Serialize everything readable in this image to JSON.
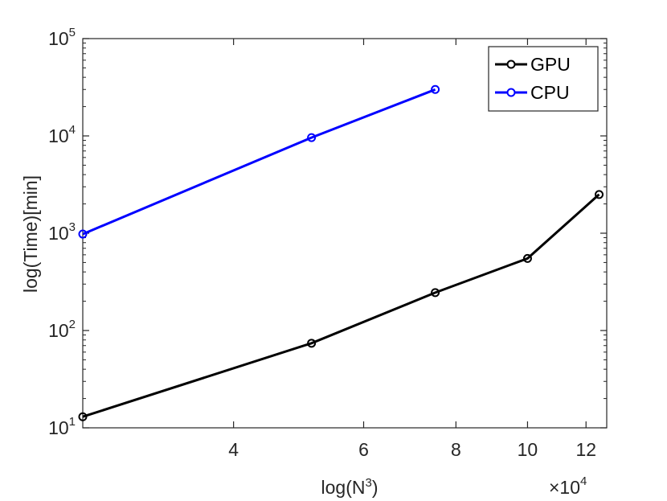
{
  "chart_data": {
    "type": "line",
    "xscale": "log",
    "yscale": "log",
    "xlim": [
      25000,
      128000
    ],
    "ylim": [
      10,
      100000
    ],
    "xlabel": {
      "base": "log(N",
      "sup": "3",
      "close": ")"
    },
    "ylabel": "log(Time)[min]",
    "x_multiplier": {
      "prefix": "×10",
      "exp": "4"
    },
    "xticks": [
      {
        "value": 40000,
        "label": "4"
      },
      {
        "value": 60000,
        "label": "6"
      },
      {
        "value": 80000,
        "label": "8"
      },
      {
        "value": 100000,
        "label": "10"
      },
      {
        "value": 120000,
        "label": "12"
      }
    ],
    "yticks": [
      {
        "value": 10,
        "base": "10",
        "exp": "1"
      },
      {
        "value": 100,
        "base": "10",
        "exp": "2"
      },
      {
        "value": 1000,
        "base": "10",
        "exp": "3"
      },
      {
        "value": 10000,
        "base": "10",
        "exp": "4"
      },
      {
        "value": 100000,
        "base": "10",
        "exp": "5"
      }
    ],
    "series": [
      {
        "name": "GPU",
        "color": "#000000",
        "x": [
          25000,
          51000,
          75000,
          100000,
          125000
        ],
        "values": [
          13,
          74,
          245,
          550,
          2500
        ]
      },
      {
        "name": "CPU",
        "color": "#0000ff",
        "x": [
          25000,
          51000,
          75000
        ],
        "values": [
          980,
          9600,
          30000
        ]
      }
    ],
    "legend_position": "top-right",
    "grid": false
  }
}
